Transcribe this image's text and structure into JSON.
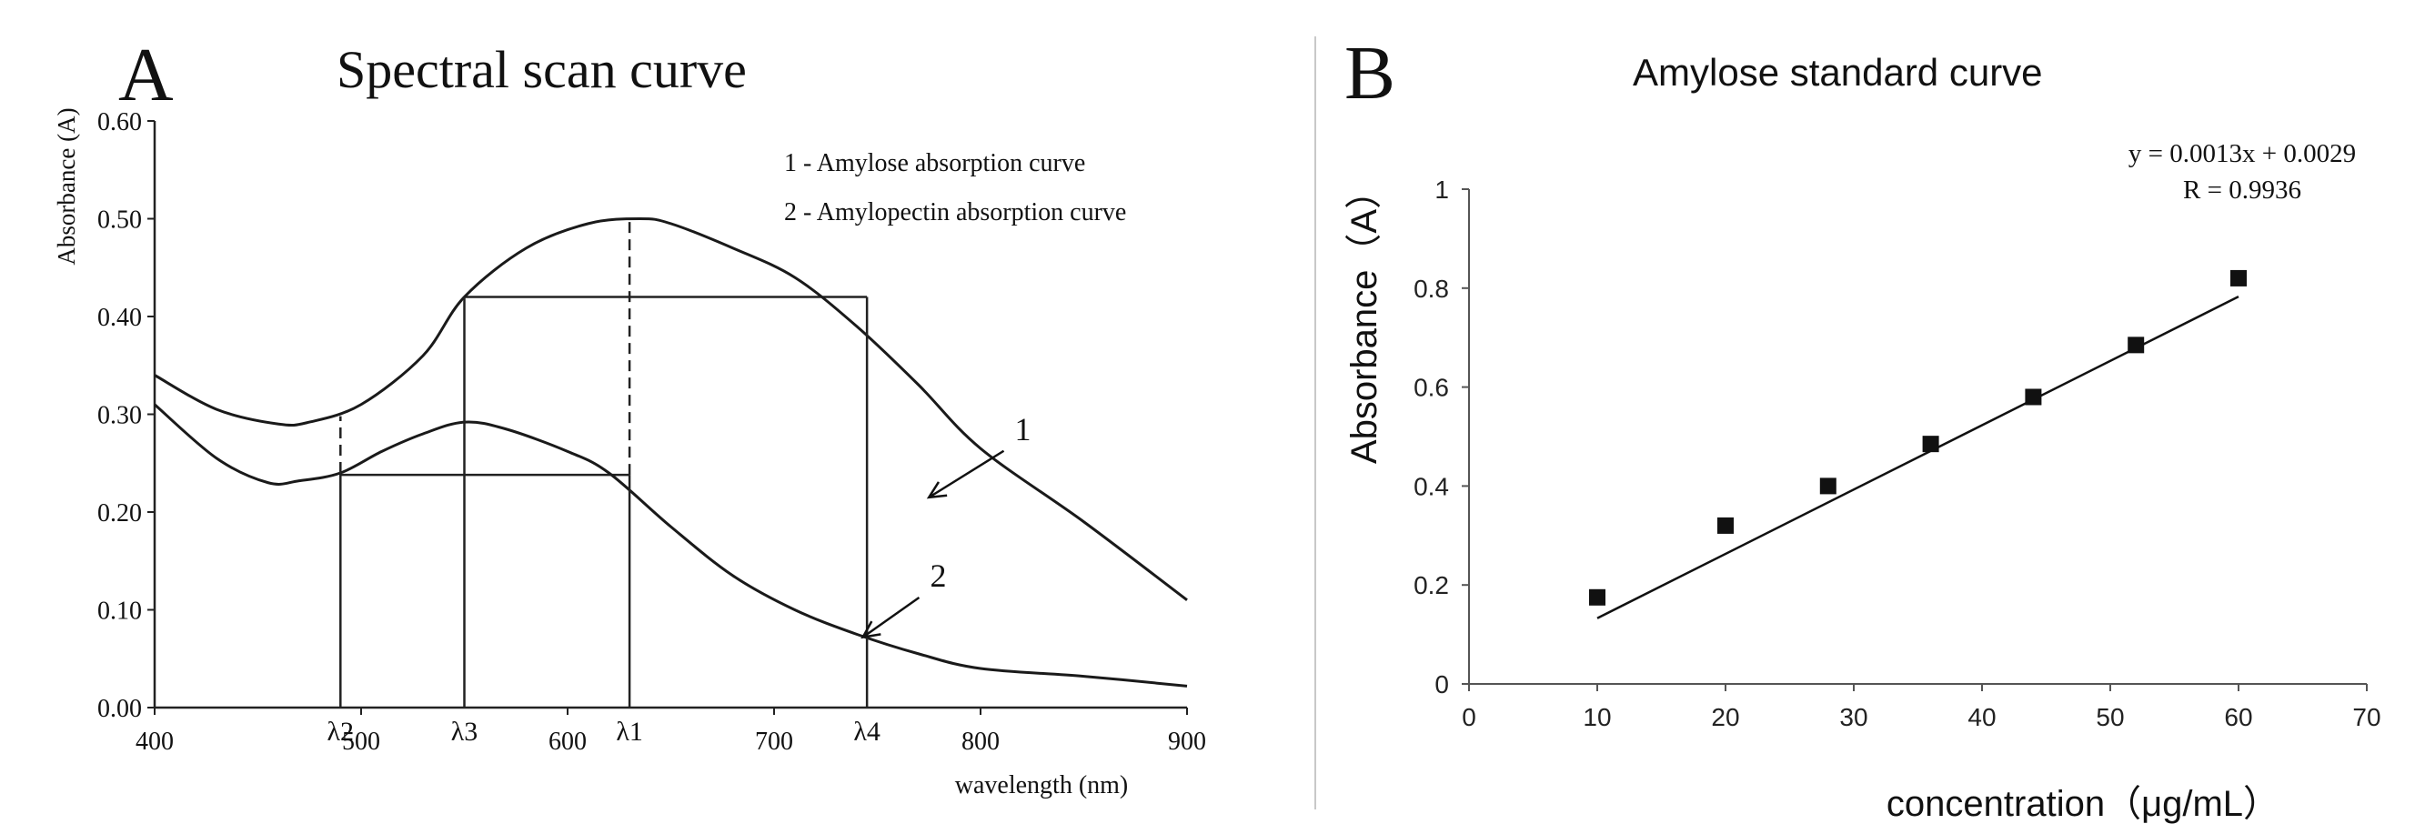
{
  "chart_data": [
    {
      "panel_label": "A",
      "type": "line",
      "title": "Spectral scan curve",
      "xlabel": "wavelength  (nm)",
      "ylabel": "Absorbance  (A)",
      "xlim": [
        400,
        900
      ],
      "ylim": [
        0,
        0.6
      ],
      "x_ticks": [
        "400",
        "500",
        "600",
        "700",
        "800",
        "900"
      ],
      "y_ticks": [
        "0.00",
        "0.10",
        "0.20",
        "0.30",
        "0.40",
        "0.50",
        "0.60"
      ],
      "grid": false,
      "legend": {
        "placement": "top-right",
        "entries": [
          "1 - Amylose absorption curve",
          "2 - Amylopectin absorption curve"
        ]
      },
      "series": [
        {
          "name": "1",
          "x": [
            400,
            430,
            460,
            475,
            500,
            530,
            550,
            580,
            610,
            635,
            650,
            680,
            710,
            740,
            770,
            800,
            850,
            900
          ],
          "y": [
            0.34,
            0.305,
            0.29,
            0.292,
            0.31,
            0.36,
            0.42,
            0.47,
            0.495,
            0.5,
            0.495,
            0.47,
            0.44,
            0.39,
            0.33,
            0.265,
            0.19,
            0.11
          ]
        },
        {
          "name": "2",
          "x": [
            400,
            430,
            455,
            470,
            490,
            510,
            530,
            550,
            570,
            600,
            620,
            650,
            680,
            710,
            740,
            770,
            800,
            850,
            900
          ],
          "y": [
            0.31,
            0.255,
            0.23,
            0.232,
            0.24,
            0.262,
            0.28,
            0.292,
            0.285,
            0.262,
            0.24,
            0.185,
            0.135,
            0.1,
            0.075,
            0.055,
            0.04,
            0.032,
            0.022
          ]
        }
      ],
      "annotations": [
        {
          "text": "1",
          "x": 813,
          "y": 0.27,
          "arrow_to": [
            775,
            0.215
          ]
        },
        {
          "text": "2",
          "x": 772,
          "y": 0.12,
          "arrow_to": [
            743,
            0.072
          ]
        }
      ],
      "wavelength_markers": [
        {
          "label": "λ2",
          "x": 490,
          "y_low": 0.24,
          "y_high": 0.298
        },
        {
          "label": "λ3",
          "x": 550,
          "y_low": 0.292,
          "y_high": 0.42
        },
        {
          "label": "λ1",
          "x": 630,
          "y_low": 0.238,
          "y_high": 0.5
        },
        {
          "label": "λ4",
          "x": 745,
          "y_low": 0.075,
          "y_high": 0.42
        }
      ],
      "horizontal_guides": [
        {
          "y": 0.42,
          "x_from": 550,
          "x_to": 745
        },
        {
          "y": 0.238,
          "x_from": 490,
          "x_to": 630
        }
      ]
    },
    {
      "panel_label": "B",
      "type": "scatter",
      "title": "Amylose standard curve",
      "xlabel": "concentration（μg/mL）",
      "ylabel": "Absorbance（A）",
      "xlim": [
        0,
        70
      ],
      "ylim": [
        0,
        1
      ],
      "x_ticks": [
        "0",
        "10",
        "20",
        "30",
        "40",
        "50",
        "60",
        "70"
      ],
      "y_ticks": [
        "0",
        "0.2",
        "0.4",
        "0.6",
        "0.8",
        "1"
      ],
      "grid": false,
      "x": [
        10,
        20,
        28,
        36,
        44,
        52,
        60
      ],
      "y": [
        0.175,
        0.32,
        0.4,
        0.485,
        0.58,
        0.685,
        0.82
      ],
      "trendline": {
        "slope": 0.0013,
        "intercept": 0.0029,
        "x_from": 10,
        "x_to": 60
      },
      "equation": "y = 0.0013x + 0.0029",
      "r_value": "R  = 0.9936"
    }
  ]
}
